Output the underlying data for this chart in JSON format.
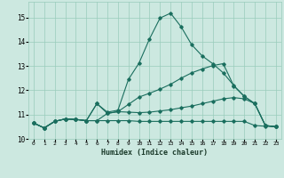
{
  "xlabel": "Humidex (Indice chaleur)",
  "bg_color": "#cce8e0",
  "grid_color": "#99ccbb",
  "line_color": "#1a6e5e",
  "xlim": [
    -0.5,
    23.5
  ],
  "ylim": [
    10.0,
    15.65
  ],
  "yticks": [
    10,
    11,
    12,
    13,
    14,
    15
  ],
  "xticks": [
    0,
    1,
    2,
    3,
    4,
    5,
    6,
    7,
    8,
    9,
    10,
    11,
    12,
    13,
    14,
    15,
    16,
    17,
    18,
    19,
    20,
    21,
    22,
    23
  ],
  "lines": [
    {
      "x": [
        0,
        1,
        2,
        3,
        4,
        5,
        6,
        7,
        8,
        9,
        10,
        11,
        12,
        13,
        14,
        15,
        16,
        17,
        18,
        19,
        20,
        21,
        22,
        23
      ],
      "y": [
        10.65,
        10.45,
        10.72,
        10.82,
        10.8,
        10.75,
        10.75,
        10.75,
        10.75,
        10.75,
        10.72,
        10.72,
        10.72,
        10.72,
        10.72,
        10.72,
        10.72,
        10.72,
        10.72,
        10.72,
        10.72,
        10.55,
        10.52,
        10.5
      ]
    },
    {
      "x": [
        0,
        1,
        2,
        3,
        4,
        5,
        6,
        7,
        8,
        9,
        10,
        11,
        12,
        13,
        14,
        15,
        16,
        17,
        18,
        19,
        20,
        21,
        22,
        23
      ],
      "y": [
        10.65,
        10.45,
        10.72,
        10.82,
        10.8,
        10.75,
        11.45,
        11.05,
        11.12,
        11.1,
        11.08,
        11.1,
        11.15,
        11.2,
        11.28,
        11.35,
        11.45,
        11.55,
        11.65,
        11.7,
        11.65,
        11.45,
        10.55,
        10.5
      ]
    },
    {
      "x": [
        0,
        1,
        2,
        3,
        4,
        5,
        6,
        7,
        8,
        9,
        10,
        11,
        12,
        13,
        14,
        15,
        16,
        17,
        18,
        19,
        20,
        21,
        22,
        23
      ],
      "y": [
        10.65,
        10.45,
        10.72,
        10.82,
        10.8,
        10.75,
        10.75,
        11.05,
        11.12,
        11.42,
        11.72,
        11.88,
        12.05,
        12.25,
        12.5,
        12.72,
        12.88,
        13.02,
        13.1,
        12.18,
        11.75,
        11.45,
        10.55,
        10.5
      ]
    },
    {
      "x": [
        0,
        1,
        2,
        3,
        4,
        5,
        6,
        7,
        8,
        9,
        10,
        11,
        12,
        13,
        14,
        15,
        16,
        17,
        18,
        19,
        20,
        21,
        22,
        23
      ],
      "y": [
        10.65,
        10.45,
        10.72,
        10.82,
        10.8,
        10.75,
        11.45,
        11.1,
        11.18,
        12.45,
        13.12,
        14.12,
        14.98,
        15.18,
        14.62,
        13.88,
        13.42,
        13.1,
        12.72,
        12.2,
        11.75,
        11.45,
        10.55,
        10.5
      ]
    }
  ]
}
